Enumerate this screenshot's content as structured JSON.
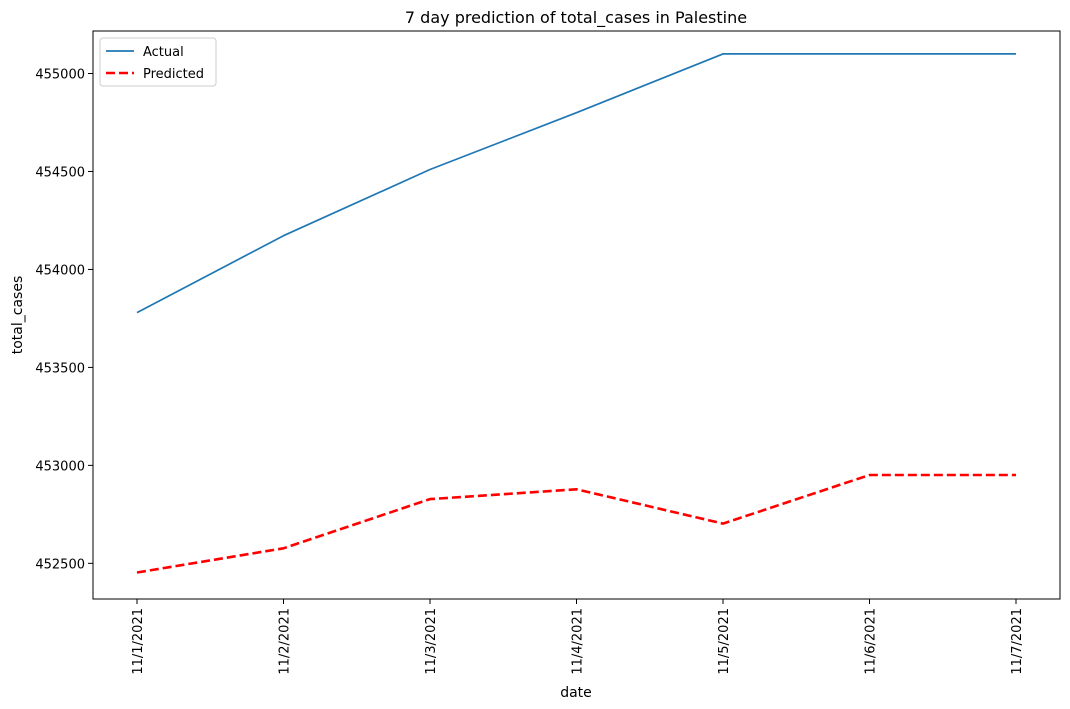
{
  "chart_data": {
    "type": "line",
    "title": "7 day prediction of total_cases in Palestine",
    "xlabel": "date",
    "ylabel": "total_cases",
    "categories": [
      "11/1/2021",
      "11/2/2021",
      "11/3/2021",
      "11/4/2021",
      "11/5/2021",
      "11/6/2021",
      "11/7/2021"
    ],
    "yticks": [
      452500,
      453000,
      453500,
      454000,
      454500,
      455000
    ],
    "ylim": [
      452318,
      455217
    ],
    "grid": false,
    "legend_position": "top-left",
    "series": [
      {
        "name": "Actual",
        "color": "#1f77b4",
        "style": "solid",
        "values": [
          453780,
          454172,
          454510,
          454800,
          455100,
          455100,
          455100
        ]
      },
      {
        "name": "Predicted",
        "color": "#ff0000",
        "style": "dashed",
        "values": [
          452453,
          452577,
          452828,
          452878,
          452703,
          452951,
          452951
        ]
      }
    ]
  }
}
